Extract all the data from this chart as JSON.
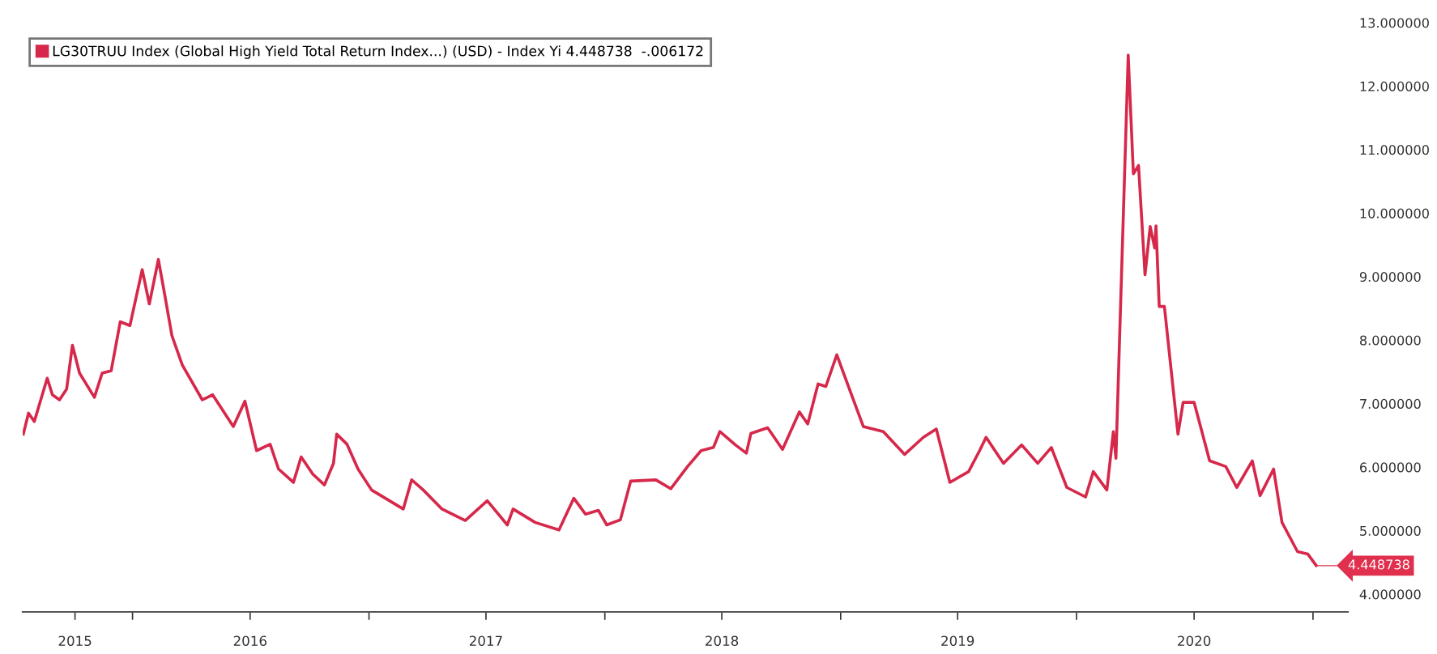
{
  "chart_data": {
    "type": "line",
    "x": [
      "2015-07-16",
      "2015-07-24",
      "2015-08-02",
      "2015-08-22",
      "2015-08-30",
      "2015-09-10",
      "2015-09-21",
      "2015-09-30",
      "2015-10-11",
      "2015-11-03",
      "2015-11-15",
      "2015-11-29",
      "2015-12-13",
      "2015-12-28",
      "2016-01-16",
      "2016-01-27",
      "2016-02-10",
      "2016-02-18",
      "2016-03-02",
      "2016-03-18",
      "2016-04-18",
      "2016-05-04",
      "2016-06-05",
      "2016-06-23",
      "2016-07-11",
      "2016-08-01",
      "2016-08-14",
      "2016-09-06",
      "2016-09-18",
      "2016-10-06",
      "2016-10-24",
      "2016-11-07",
      "2016-11-12",
      "2016-11-28",
      "2016-12-15",
      "2017-01-05",
      "2017-02-23",
      "2017-03-08",
      "2017-03-26",
      "2017-04-24",
      "2017-05-30",
      "2017-07-03",
      "2017-08-03",
      "2017-08-12",
      "2017-09-15",
      "2017-10-22",
      "2017-11-14",
      "2017-12-02",
      "2017-12-22",
      "2018-01-04",
      "2018-01-25",
      "2018-02-10",
      "2018-03-21",
      "2018-04-13",
      "2018-05-09",
      "2018-05-30",
      "2018-06-18",
      "2018-06-28",
      "2018-07-22",
      "2018-08-08",
      "2018-08-15",
      "2018-09-10",
      "2018-10-03",
      "2018-10-29",
      "2018-11-11",
      "2018-11-27",
      "2018-12-09",
      "2018-12-26",
      "2019-01-16",
      "2019-02-05",
      "2019-03-08",
      "2019-04-10",
      "2019-05-09",
      "2019-05-29",
      "2019-06-19",
      "2019-07-18",
      "2019-08-04",
      "2019-08-14",
      "2019-09-10",
      "2019-10-08",
      "2019-11-02",
      "2019-11-23",
      "2019-12-17",
      "2020-01-15",
      "2020-01-27",
      "2020-02-17",
      "2020-02-27",
      "2020-03-02",
      "2020-03-21",
      "2020-03-29",
      "2020-04-06",
      "2020-04-16",
      "2020-04-24",
      "2020-05-01",
      "2020-05-03",
      "2020-05-08",
      "2020-05-16",
      "2020-06-06",
      "2020-06-14",
      "2020-07-01",
      "2020-07-25",
      "2020-08-19",
      "2020-09-05",
      "2020-09-29",
      "2020-10-11",
      "2020-11-01",
      "2020-11-14",
      "2020-12-08",
      "2020-12-24",
      "2021-01-06"
    ],
    "series": [
      {
        "name": "LG30TRUU Index (Global High Yield Total Return Index...) (USD) - Index Yi 4.448738  -.006172",
        "color": "#d6284a",
        "values": [
          6.52,
          6.85,
          6.72,
          7.4,
          7.14,
          7.06,
          7.23,
          7.92,
          7.48,
          7.1,
          7.48,
          7.52,
          8.29,
          8.23,
          9.11,
          8.57,
          9.27,
          8.82,
          8.07,
          7.61,
          7.06,
          7.14,
          6.64,
          7.04,
          6.26,
          6.36,
          5.97,
          5.76,
          6.16,
          5.89,
          5.72,
          6.06,
          6.52,
          6.36,
          5.97,
          5.64,
          5.34,
          5.8,
          5.64,
          5.34,
          5.16,
          5.47,
          5.09,
          5.34,
          5.13,
          5.01,
          5.51,
          5.26,
          5.32,
          5.09,
          5.17,
          5.78,
          5.8,
          5.66,
          6.01,
          6.26,
          6.31,
          6.56,
          6.35,
          6.22,
          6.53,
          6.62,
          6.28,
          6.87,
          6.68,
          7.31,
          7.27,
          7.77,
          7.19,
          6.64,
          6.56,
          6.2,
          6.47,
          6.6,
          5.76,
          5.93,
          6.26,
          6.47,
          6.06,
          6.35,
          6.06,
          6.31,
          5.68,
          5.53,
          5.93,
          5.64,
          6.56,
          6.14,
          12.49,
          10.62,
          10.75,
          9.03,
          9.79,
          9.45,
          9.8,
          8.53,
          8.53,
          6.52,
          7.02,
          7.02,
          6.1,
          6.01,
          5.68,
          6.1,
          5.55,
          5.97,
          5.13,
          4.67,
          4.63,
          4.45
        ]
      }
    ],
    "annotations": [
      {
        "text": "4.448738",
        "x": "2021-01-06",
        "y": 4.448738
      }
    ],
    "xlim": [
      "2015-07-15",
      "2021-02-24"
    ],
    "xticks": [
      {
        "value": "2015-10-04",
        "label": "2015"
      },
      {
        "value": "2016-01-01",
        "label": null
      },
      {
        "value": "2016-07-01",
        "label": "2016"
      },
      {
        "value": "2017-01-01",
        "label": null
      },
      {
        "value": "2017-07-01",
        "label": "2017"
      },
      {
        "value": "2018-01-01",
        "label": null
      },
      {
        "value": "2018-07-01",
        "label": "2018"
      },
      {
        "value": "2019-01-01",
        "label": null
      },
      {
        "value": "2019-07-01",
        "label": "2019"
      },
      {
        "value": "2020-01-01",
        "label": null
      },
      {
        "value": "2020-07-01",
        "label": "2020"
      },
      {
        "value": "2021-01-01",
        "label": null
      }
    ],
    "ylim": [
      3.72,
      13.0
    ],
    "yticks": [
      {
        "value": 4,
        "label": "4.000000"
      },
      {
        "value": 5,
        "label": "5.000000"
      },
      {
        "value": 6,
        "label": "6.000000"
      },
      {
        "value": 7,
        "label": "7.000000"
      },
      {
        "value": 8,
        "label": "8.000000"
      },
      {
        "value": 9,
        "label": "9.000000"
      },
      {
        "value": 10,
        "label": "10.000000"
      },
      {
        "value": 11,
        "label": "11.000000"
      },
      {
        "value": 12,
        "label": "12.000000"
      },
      {
        "value": 13,
        "label": "13.000000"
      }
    ],
    "grid": false,
    "legend": "top left",
    "marker": "none",
    "line_style": "solid"
  }
}
